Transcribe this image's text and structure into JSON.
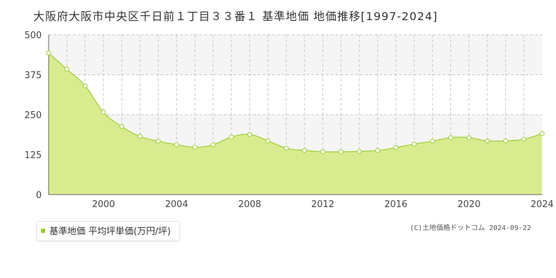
{
  "title": "大阪府大阪市中央区千日前１丁目３３番１ 基準地価 地価推移[1997-2024]",
  "legend": {
    "label": "基準地価 平均坪単価(万円/坪)"
  },
  "credit": "(C)土地価格ドットコム 2024-09-22",
  "colors": {
    "area": "#d8ec8f",
    "line": "#a8d34a",
    "marker_fill": "#ffffff",
    "grid": "#c8c8c8",
    "band": "#f5f5f5"
  },
  "chart_data": {
    "type": "area",
    "x": [
      1997,
      1998,
      1999,
      2000,
      2001,
      2002,
      2003,
      2004,
      2005,
      2006,
      2007,
      2008,
      2009,
      2010,
      2011,
      2012,
      2013,
      2014,
      2015,
      2016,
      2017,
      2018,
      2019,
      2020,
      2021,
      2022,
      2023,
      2024
    ],
    "series": [
      {
        "name": "基準地価 平均坪単価(万円/坪)",
        "values": [
          443,
          392,
          340,
          258,
          213,
          182,
          167,
          156,
          148,
          156,
          180,
          188,
          168,
          145,
          138,
          134,
          134,
          135,
          138,
          147,
          158,
          167,
          178,
          178,
          168,
          168,
          173,
          191
        ]
      }
    ],
    "xticks": [
      2000,
      2004,
      2008,
      2012,
      2016,
      2020,
      2024
    ],
    "yticks": [
      0,
      125,
      250,
      375,
      500
    ],
    "xlim": [
      1997,
      2024
    ],
    "ylim": [
      0,
      500
    ],
    "grid": true,
    "legend_position": "bottom-left"
  }
}
